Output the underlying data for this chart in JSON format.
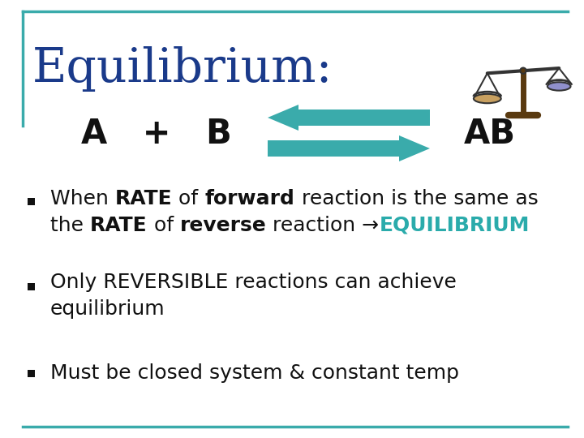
{
  "title": "Equilibrium:",
  "title_color": "#1a3a8a",
  "title_fontsize": 42,
  "bg_color": "#ffffff",
  "border_color": "#3aabab",
  "equation_left": "A   +   B",
  "equation_right": "AB",
  "arrow_color": "#3aabab",
  "bullet_square_color": "#111111",
  "teal_color": "#2aabab",
  "text_color": "#111111",
  "fontsize_main": 18,
  "fontsize_eq": 30,
  "line1_segments": [
    [
      "When ",
      false
    ],
    [
      "RATE",
      true
    ],
    [
      " of ",
      false
    ],
    [
      "forward",
      true
    ],
    [
      " reaction is the same as",
      false
    ]
  ],
  "line2_segments": [
    [
      "the ",
      false
    ],
    [
      "RATE",
      true
    ],
    [
      " of ",
      false
    ],
    [
      "reverse",
      true
    ],
    [
      " reaction →",
      false
    ]
  ],
  "line2_teal": "EQUILIBRIUM",
  "bullet2_line1": "Only REVERSIBLE reactions can achieve",
  "bullet2_line2": "equilibrium",
  "bullet3": "Must be closed system & constant temp"
}
